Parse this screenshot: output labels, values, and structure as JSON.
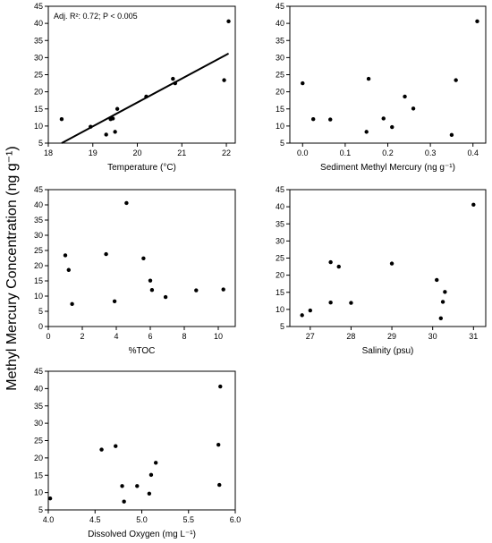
{
  "ylabel": "Methyl Mercury Concentration (ng g⁻¹)",
  "chart_data": [
    {
      "type": "scatter",
      "xlabel": "Temperature (°C)",
      "annotation": "Adj. R²: 0.72; P < 0.005",
      "xlim": [
        18,
        22.2
      ],
      "xticks": [
        18,
        19,
        20,
        21,
        22
      ],
      "ylim": [
        5,
        45
      ],
      "yticks": [
        5,
        10,
        15,
        20,
        25,
        30,
        35,
        40,
        45
      ],
      "color": "#000000",
      "x": [
        18.3,
        18.95,
        19.3,
        19.4,
        19.45,
        19.5,
        19.55,
        20.2,
        20.8,
        20.85,
        21.95,
        22.05
      ],
      "values": [
        12,
        9.8,
        7.5,
        12,
        12.2,
        8.3,
        15,
        18.6,
        23.8,
        22.5,
        23.4,
        40.6
      ],
      "fit": {
        "x": [
          18.3,
          22.05
        ],
        "y": [
          5,
          31.2
        ]
      }
    },
    {
      "type": "scatter",
      "xlabel": "Sediment Methyl Mercury (ng g⁻¹)",
      "xlim": [
        -0.03,
        0.43
      ],
      "xticks": [
        {
          "value": 0,
          "label": "0.0"
        },
        {
          "value": 0.1,
          "label": "0.1"
        },
        {
          "value": 0.2,
          "label": "0.2"
        },
        {
          "value": 0.3,
          "label": "0.3"
        },
        {
          "value": 0.4,
          "label": "0.4"
        }
      ],
      "ylim": [
        5,
        45
      ],
      "yticks": [
        5,
        10,
        15,
        20,
        25,
        30,
        35,
        40,
        45
      ],
      "color": "#000000",
      "x": [
        0.0,
        0.025,
        0.065,
        0.15,
        0.155,
        0.19,
        0.21,
        0.24,
        0.26,
        0.35,
        0.36,
        0.41
      ],
      "values": [
        22.5,
        12,
        11.9,
        8.3,
        23.8,
        12.2,
        9.7,
        18.6,
        15.1,
        7.4,
        23.4,
        40.6
      ]
    },
    {
      "type": "scatter",
      "xlabel": "%TOC",
      "xlim": [
        0,
        11
      ],
      "xticks": [
        0,
        2,
        4,
        6,
        8,
        10
      ],
      "ylim": [
        0,
        45
      ],
      "yticks": [
        0,
        5,
        10,
        15,
        20,
        25,
        30,
        35,
        40,
        45
      ],
      "color": "#000000",
      "x": [
        1.0,
        1.2,
        1.4,
        3.4,
        3.9,
        4.6,
        5.6,
        6.0,
        6.1,
        6.9,
        8.7,
        10.3
      ],
      "values": [
        23.4,
        18.6,
        7.4,
        23.8,
        8.3,
        40.6,
        22.4,
        15.1,
        12.0,
        9.7,
        11.9,
        12.2
      ]
    },
    {
      "type": "scatter",
      "xlabel": "Salinity (psu)",
      "xlim": [
        26.5,
        31.3
      ],
      "xticks": [
        27,
        28,
        29,
        30,
        31
      ],
      "ylim": [
        5,
        45
      ],
      "yticks": [
        5,
        10,
        15,
        20,
        25,
        30,
        35,
        40,
        45
      ],
      "color": "#000000",
      "x": [
        26.8,
        27.0,
        27.5,
        27.5,
        27.7,
        28.0,
        29.0,
        30.1,
        30.2,
        30.25,
        30.3,
        31.0
      ],
      "values": [
        8.3,
        9.7,
        23.8,
        12,
        22.5,
        11.9,
        23.4,
        18.6,
        7.4,
        12.2,
        15.1,
        40.6
      ]
    },
    {
      "type": "scatter",
      "xlabel": "Dissolved Oxygen (mg L⁻¹)",
      "xlim": [
        4.0,
        6.0
      ],
      "xticks": [
        {
          "value": 4,
          "label": "4.0"
        },
        {
          "value": 4.5,
          "label": "4.5"
        },
        {
          "value": 5,
          "label": "5.0"
        },
        {
          "value": 5.5,
          "label": "5.5"
        },
        {
          "value": 6,
          "label": "6.0"
        }
      ],
      "ylim": [
        5,
        45
      ],
      "yticks": [
        5,
        10,
        15,
        20,
        25,
        30,
        35,
        40,
        45
      ],
      "color": "#000000",
      "x": [
        4.02,
        4.57,
        4.72,
        4.79,
        4.81,
        4.95,
        5.08,
        5.1,
        5.15,
        5.82,
        5.83,
        5.84
      ],
      "values": [
        8.3,
        22.4,
        23.4,
        11.9,
        7.4,
        11.9,
        9.7,
        15.1,
        18.6,
        23.8,
        12.2,
        40.6
      ]
    }
  ]
}
